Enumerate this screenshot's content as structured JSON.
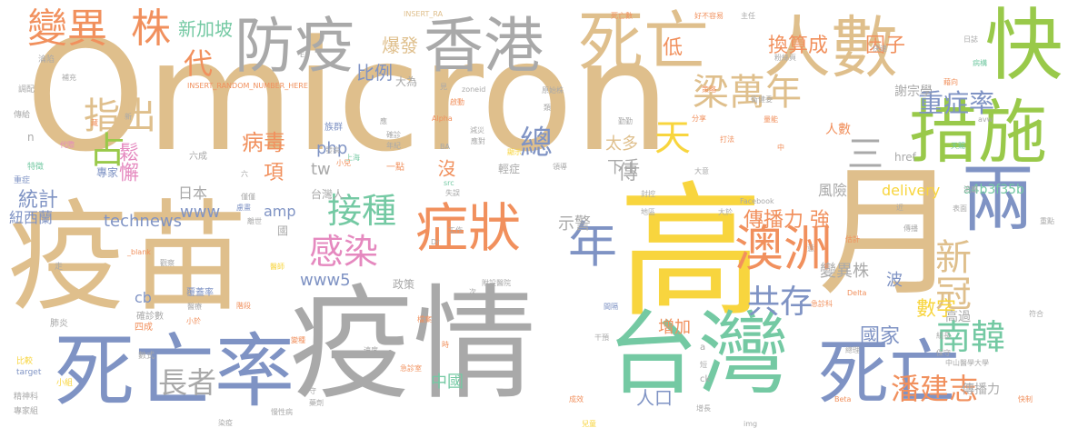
{
  "title": "Omicron word cloud",
  "colors": {
    "tan": "#dfbf8c",
    "grey": "#a9a9a9",
    "blue": "#7f93c4",
    "green": "#74c9a3",
    "lime": "#99c94a",
    "yellow": "#f8d53e",
    "orange": "#f1905d",
    "pink": "#e589bf",
    "background": "#ffffff"
  },
  "words": [
    {
      "text": "Omicron",
      "weight": 100,
      "color": "tan"
    },
    {
      "text": "疫情",
      "weight": 95,
      "color": "grey"
    },
    {
      "text": "疫苗",
      "weight": 90,
      "color": "tan"
    },
    {
      "text": "高",
      "weight": 92,
      "color": "yellow"
    },
    {
      "text": "台灣",
      "weight": 88,
      "color": "green"
    },
    {
      "text": "月",
      "weight": 87,
      "color": "tan"
    },
    {
      "text": "死亡率",
      "weight": 80,
      "color": "blue"
    },
    {
      "text": "死亡",
      "weight": 78,
      "color": "blue"
    },
    {
      "text": "防疫",
      "weight": 75,
      "color": "grey"
    },
    {
      "text": "香港",
      "weight": 75,
      "color": "grey"
    },
    {
      "text": "死亡",
      "weight": 74,
      "color": "tan"
    },
    {
      "text": "人數",
      "weight": 73,
      "color": "tan"
    },
    {
      "text": "快",
      "weight": 72,
      "color": "lime"
    },
    {
      "text": "措施",
      "weight": 70,
      "color": "lime"
    },
    {
      "text": "兩",
      "weight": 68,
      "color": "blue"
    },
    {
      "text": "症狀",
      "weight": 66,
      "color": "orange"
    },
    {
      "text": "澳洲",
      "weight": 62,
      "color": "orange"
    },
    {
      "text": "年",
      "weight": 58,
      "color": "blue"
    },
    {
      "text": "變異",
      "weight": 50,
      "color": "orange"
    },
    {
      "text": "株",
      "weight": 45,
      "color": "orange"
    },
    {
      "text": "梁萬年",
      "weight": 48,
      "color": "tan"
    },
    {
      "text": "指出",
      "weight": 45,
      "color": "tan"
    },
    {
      "text": "占",
      "weight": 44,
      "color": "lime"
    },
    {
      "text": "天",
      "weight": 44,
      "color": "yellow"
    },
    {
      "text": "接種",
      "weight": 44,
      "color": "green"
    },
    {
      "text": "感染",
      "weight": 44,
      "color": "pink"
    },
    {
      "text": "新冠",
      "weight": 42,
      "color": "tan"
    },
    {
      "text": "南韓",
      "weight": 42,
      "color": "green"
    },
    {
      "text": "共存",
      "weight": 40,
      "color": "blue"
    },
    {
      "text": "總",
      "weight": 40,
      "color": "blue"
    },
    {
      "text": "長者",
      "weight": 38,
      "color": "grey"
    },
    {
      "text": "潘建志",
      "weight": 38,
      "color": "orange"
    },
    {
      "text": "重症率",
      "weight": 34,
      "color": "blue"
    },
    {
      "text": "三",
      "weight": 34,
      "color": "grey"
    },
    {
      "text": "代",
      "weight": 30,
      "color": "orange"
    },
    {
      "text": "換算成",
      "weight": 28,
      "color": "orange"
    },
    {
      "text": "因子",
      "weight": 24,
      "color": "orange"
    },
    {
      "text": "新加坡",
      "weight": 22,
      "color": "green"
    },
    {
      "text": "爆發",
      "weight": 22,
      "color": "tan"
    },
    {
      "text": "比例",
      "weight": 22,
      "color": "blue"
    },
    {
      "text": "病毒",
      "weight": 24,
      "color": "orange"
    },
    {
      "text": "項",
      "weight": 24,
      "color": "orange"
    },
    {
      "text": "統計",
      "weight": 24,
      "color": "blue"
    },
    {
      "text": "鬆懈",
      "weight": 22,
      "color": "pink"
    },
    {
      "text": "數字",
      "weight": 24,
      "color": "yellow"
    },
    {
      "text": "國家",
      "weight": 22,
      "color": "blue"
    },
    {
      "text": "中國",
      "weight": 20,
      "color": "green"
    },
    {
      "text": "人口",
      "weight": 22,
      "color": "blue"
    },
    {
      "text": "傳播力 強",
      "weight": 22,
      "color": "orange"
    },
    {
      "text": "變異株",
      "weight": 18,
      "color": "grey"
    },
    {
      "text": "波",
      "weight": 18,
      "color": "blue"
    },
    {
      "text": "低",
      "weight": 20,
      "color": "orange"
    },
    {
      "text": "傳",
      "weight": 20,
      "color": "grey"
    },
    {
      "text": "太多",
      "weight": 18,
      "color": "tan"
    },
    {
      "text": "下手",
      "weight": 18,
      "color": "grey"
    },
    {
      "text": "沒",
      "weight": 20,
      "color": "orange"
    },
    {
      "text": "示警",
      "weight": 18,
      "color": "grey"
    },
    {
      "text": "增加",
      "weight": 18,
      "color": "orange"
    },
    {
      "text": "technews",
      "weight": 18,
      "color": "blue"
    },
    {
      "text": "www",
      "weight": 18,
      "color": "blue"
    },
    {
      "text": "www5",
      "weight": 18,
      "color": "blue"
    },
    {
      "text": "php",
      "weight": 18,
      "color": "blue"
    },
    {
      "text": "tw",
      "weight": 18,
      "color": "grey"
    },
    {
      "text": "amp",
      "weight": 16,
      "color": "blue"
    },
    {
      "text": "cb",
      "weight": 16,
      "color": "blue"
    },
    {
      "text": "delivery",
      "weight": 16,
      "color": "yellow"
    },
    {
      "text": "a4b3f35b",
      "weight": 14,
      "color": "green"
    },
    {
      "text": "風險",
      "weight": 16,
      "color": "grey"
    },
    {
      "text": "人數",
      "weight": 14,
      "color": "orange"
    },
    {
      "text": "謝宗學",
      "weight": 14,
      "color": "grey"
    },
    {
      "text": "高過",
      "weight": 14,
      "color": "grey"
    },
    {
      "text": "傳播力",
      "weight": 14,
      "color": "grey"
    },
    {
      "text": "日本",
      "weight": 16,
      "color": "grey"
    },
    {
      "text": "紐西蘭",
      "weight": 16,
      "color": "blue"
    },
    {
      "text": "專家",
      "weight": 12,
      "color": "blue"
    },
    {
      "text": "政策",
      "weight": 12,
      "color": "grey"
    },
    {
      "text": "台灣人",
      "weight": 12,
      "color": "grey"
    },
    {
      "text": "國",
      "weight": 12,
      "color": "grey"
    },
    {
      "text": "輕症",
      "weight": 12,
      "color": "grey"
    },
    {
      "text": "大為",
      "weight": 12,
      "color": "grey"
    },
    {
      "text": "族群",
      "weight": 10,
      "color": "blue"
    },
    {
      "text": "六成",
      "weight": 10,
      "color": "grey"
    },
    {
      "text": "一點",
      "weight": 10,
      "color": "orange"
    },
    {
      "text": "覆蓋率",
      "weight": 10,
      "color": "blue"
    },
    {
      "text": "確診數",
      "weight": 10,
      "color": "grey"
    },
    {
      "text": "四成",
      "weight": 10,
      "color": "orange"
    },
    {
      "text": "肺炎",
      "weight": 10,
      "color": "grey"
    },
    {
      "text": "數式",
      "weight": 9,
      "color": "grey"
    },
    {
      "text": "比較",
      "weight": 9,
      "color": "yellow"
    },
    {
      "text": "target",
      "weight": 9,
      "color": "blue"
    },
    {
      "text": "小組",
      "weight": 9,
      "color": "yellow"
    },
    {
      "text": "精神科",
      "weight": 9,
      "color": "grey"
    },
    {
      "text": "專家組",
      "weight": 9,
      "color": "grey"
    },
    {
      "text": "特徵",
      "weight": 9,
      "color": "green"
    },
    {
      "text": "重症",
      "weight": 9,
      "color": "blue"
    },
    {
      "text": "傳給",
      "weight": 9,
      "color": "grey"
    },
    {
      "text": "調配",
      "weight": 9,
      "color": "grey"
    },
    {
      "text": "淪陷",
      "weight": 9,
      "color": "grey"
    },
    {
      "text": "走",
      "weight": 9,
      "color": "grey"
    },
    {
      "text": "INSERT_RANDOM_NUMBER_HERE",
      "weight": 8,
      "color": "orange"
    },
    {
      "text": "INSERT_RA",
      "weight": 8,
      "color": "tan"
    },
    {
      "text": "死亡數",
      "weight": 8,
      "color": "orange"
    },
    {
      "text": "好不容易",
      "weight": 8,
      "color": "orange"
    },
    {
      "text": "主任",
      "weight": 8,
      "color": "grey"
    },
    {
      "text": "粉絲頁",
      "weight": 8,
      "color": "grey"
    },
    {
      "text": "日誌",
      "weight": 8,
      "color": "grey"
    },
    {
      "text": "快速",
      "weight": 8,
      "color": "grey"
    },
    {
      "text": "病構",
      "weight": 8,
      "color": "green"
    },
    {
      "text": "補充",
      "weight": 8,
      "color": "grey"
    },
    {
      "text": "zoneid",
      "weight": 8,
      "color": "grey"
    },
    {
      "text": "原始株",
      "weight": 8,
      "color": "grey"
    },
    {
      "text": "啟動",
      "weight": 8,
      "color": "orange"
    },
    {
      "text": "策略",
      "weight": 8,
      "color": "orange"
    },
    {
      "text": "衛健委",
      "weight": 8,
      "color": "grey"
    },
    {
      "text": "分享",
      "weight": 8,
      "color": "orange"
    },
    {
      "text": "勤勤",
      "weight": 8,
      "color": "grey"
    },
    {
      "text": "量能",
      "weight": 8,
      "color": "orange"
    },
    {
      "text": "天賜",
      "weight": 8,
      "color": "green"
    },
    {
      "text": "Alpha",
      "weight": 8,
      "color": "orange"
    },
    {
      "text": "減災",
      "weight": 8,
      "color": "grey"
    },
    {
      "text": "應對",
      "weight": 8,
      "color": "grey"
    },
    {
      "text": "顯示",
      "weight": 8,
      "color": "yellow"
    },
    {
      "text": "確診",
      "weight": 8,
      "color": "grey"
    },
    {
      "text": "年紀",
      "weight": 8,
      "color": "grey"
    },
    {
      "text": "發病",
      "weight": 8,
      "color": "grey"
    },
    {
      "text": "代際",
      "weight": 8,
      "color": "pink"
    },
    {
      "text": "上海",
      "weight": 8,
      "color": "green"
    },
    {
      "text": "小兒",
      "weight": 8,
      "color": "orange"
    },
    {
      "text": "領導",
      "weight": 8,
      "color": "grey"
    },
    {
      "text": "打法",
      "weight": 8,
      "color": "orange"
    },
    {
      "text": "大意",
      "weight": 8,
      "color": "grey"
    },
    {
      "text": "封控",
      "weight": 8,
      "color": "grey"
    },
    {
      "text": "流感",
      "weight": 8,
      "color": "grey"
    },
    {
      "text": "表面",
      "weight": 8,
      "color": "grey"
    },
    {
      "text": "Facebook",
      "weight": 8,
      "color": "grey"
    },
    {
      "text": "大於",
      "weight": 8,
      "color": "grey"
    },
    {
      "text": "傳播",
      "weight": 8,
      "color": "grey"
    },
    {
      "text": "估計",
      "weight": 8,
      "color": "orange"
    },
    {
      "text": "地區",
      "weight": 8,
      "color": "grey"
    },
    {
      "text": "_blank",
      "weight": 8,
      "color": "orange"
    },
    {
      "text": "觀察",
      "weight": 8,
      "color": "grey"
    },
    {
      "text": "醫師",
      "weight": 8,
      "color": "yellow"
    },
    {
      "text": "離世",
      "weight": 8,
      "color": "grey"
    },
    {
      "text": "慮畫",
      "weight": 8,
      "color": "blue"
    },
    {
      "text": "僅僅",
      "weight": 8,
      "color": "grey"
    },
    {
      "text": "階段",
      "weight": 8,
      "color": "orange"
    },
    {
      "text": "小於",
      "weight": 8,
      "color": "orange"
    },
    {
      "text": "醫療",
      "weight": 8,
      "color": "grey"
    },
    {
      "text": "附設醫院",
      "weight": 8,
      "color": "grey"
    },
    {
      "text": "工作",
      "weight": 8,
      "color": "grey"
    },
    {
      "text": "間隔",
      "weight": 8,
      "color": "blue"
    },
    {
      "text": "檔案",
      "weight": 8,
      "color": "orange"
    },
    {
      "text": "變種",
      "weight": 8,
      "color": "orange"
    },
    {
      "text": "急診室",
      "weight": 8,
      "color": "orange"
    },
    {
      "text": "速度",
      "weight": 8,
      "color": "grey"
    },
    {
      "text": "干預",
      "weight": 8,
      "color": "grey"
    },
    {
      "text": "Delta",
      "weight": 8,
      "color": "orange"
    },
    {
      "text": "急診科",
      "weight": 8,
      "color": "orange"
    },
    {
      "text": "組長",
      "weight": 8,
      "color": "grey"
    },
    {
      "text": "符合",
      "weight": 8,
      "color": "grey"
    },
    {
      "text": "總理",
      "weight": 8,
      "color": "grey"
    },
    {
      "text": "保守",
      "weight": 8,
      "color": "grey"
    },
    {
      "text": "中山醫學大學",
      "weight": 8,
      "color": "grey"
    },
    {
      "text": "快制",
      "weight": 8,
      "color": "orange"
    },
    {
      "text": "重點",
      "weight": 8,
      "color": "grey"
    },
    {
      "text": "成效",
      "weight": 8,
      "color": "orange"
    },
    {
      "text": "增長",
      "weight": 8,
      "color": "grey"
    },
    {
      "text": "兒童",
      "weight": 8,
      "color": "yellow"
    },
    {
      "text": "img",
      "weight": 8,
      "color": "grey"
    },
    {
      "text": "Beta",
      "weight": 8,
      "color": "orange"
    },
    {
      "text": "慢性病",
      "weight": 8,
      "color": "grey"
    },
    {
      "text": "染疫",
      "weight": 8,
      "color": "grey"
    },
    {
      "text": "ck",
      "weight": 10,
      "color": "grey"
    },
    {
      "text": "短",
      "weight": 8,
      "color": "grey"
    },
    {
      "text": "a",
      "weight": 10,
      "color": "grey"
    },
    {
      "text": "次",
      "weight": 8,
      "color": "grey"
    },
    {
      "text": "時",
      "weight": 8,
      "color": "orange"
    },
    {
      "text": "守",
      "weight": 8,
      "color": "grey"
    },
    {
      "text": "藥劑",
      "weight": 8,
      "color": "grey"
    },
    {
      "text": "失誤",
      "weight": 8,
      "color": "grey"
    },
    {
      "text": "src",
      "weight": 8,
      "color": "green"
    },
    {
      "text": "BA",
      "weight": 8,
      "color": "grey"
    },
    {
      "text": "href",
      "weight": 12,
      "color": "grey"
    },
    {
      "text": "avw",
      "weight": 8,
      "color": "grey"
    },
    {
      "text": "n",
      "weight": 12,
      "color": "grey"
    },
    {
      "text": "應",
      "weight": 8,
      "color": "grey"
    },
    {
      "text": "新",
      "weight": 8,
      "color": "grey"
    },
    {
      "text": "藏",
      "weight": 8,
      "color": "orange"
    },
    {
      "text": "六",
      "weight": 8,
      "color": "grey"
    },
    {
      "text": "Dr",
      "weight": 8,
      "color": "grey"
    },
    {
      "text": "近",
      "weight": 8,
      "color": "grey"
    },
    {
      "text": "中",
      "weight": 8,
      "color": "orange"
    },
    {
      "text": "意",
      "weight": 8,
      "color": "grey"
    },
    {
      "text": "E",
      "weight": 8,
      "color": "grey"
    },
    {
      "text": "類",
      "weight": 8,
      "color": "grey"
    },
    {
      "text": "見",
      "weight": 8,
      "color": "grey"
    },
    {
      "text": "藉向",
      "weight": 8,
      "color": "orange"
    }
  ]
}
